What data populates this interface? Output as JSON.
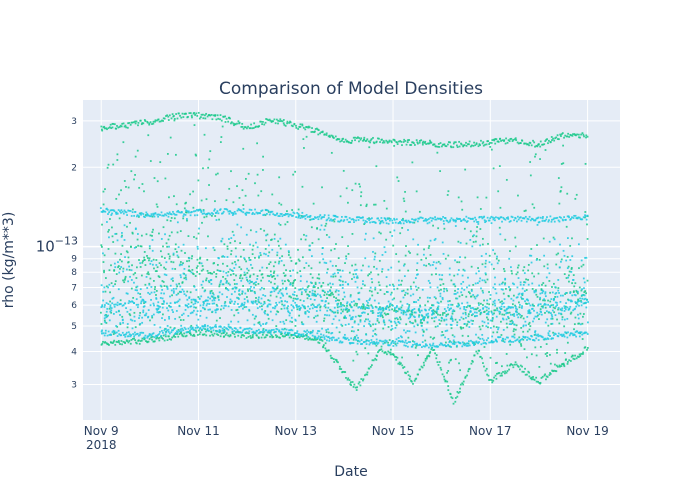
{
  "chart_data": {
    "type": "scatter",
    "title": "Comparison of Model Densities",
    "xlabel": "Date",
    "ylabel": "rho (kg/m**3)",
    "x_ticks": [
      {
        "date": "2018-11-09",
        "label": "Nov 9",
        "sublabel": "2018"
      },
      {
        "date": "2018-11-11",
        "label": "Nov 11",
        "sublabel": ""
      },
      {
        "date": "2018-11-13",
        "label": "Nov 13",
        "sublabel": ""
      },
      {
        "date": "2018-11-15",
        "label": "Nov 15",
        "sublabel": ""
      },
      {
        "date": "2018-11-17",
        "label": "Nov 17",
        "sublabel": ""
      },
      {
        "date": "2018-11-19",
        "label": "Nov 19",
        "sublabel": ""
      }
    ],
    "y_scale": "log",
    "y_major_ticks": [
      {
        "value": 1e-13,
        "base": "10",
        "exp": "−13"
      }
    ],
    "y_minor_ticks": [
      {
        "value": 3e-14,
        "label": "3"
      },
      {
        "value": 4e-14,
        "label": "4"
      },
      {
        "value": 5e-14,
        "label": "5"
      },
      {
        "value": 6e-14,
        "label": "6"
      },
      {
        "value": 7e-14,
        "label": "7"
      },
      {
        "value": 8e-14,
        "label": "8"
      },
      {
        "value": 9e-14,
        "label": "9"
      },
      {
        "value": 2e-13,
        "label": "2"
      },
      {
        "value": 3e-13,
        "label": "3"
      }
    ],
    "xlim": [
      "2018-11-08T15:00",
      "2018-11-19T16:00"
    ],
    "ylim": [
      2.2e-14,
      3.6e-13
    ],
    "grid": true,
    "series": [
      {
        "color": "#19c98a",
        "upper_envelope": [
          [
            "2018-11-09T00:00",
            2.9e-13
          ],
          [
            "2018-11-09T12:00",
            2.95e-13
          ],
          [
            "2018-11-10T00:00",
            3.05e-13
          ],
          [
            "2018-11-10T12:00",
            3.2e-13
          ],
          [
            "2018-11-11T00:00",
            3.22e-13
          ],
          [
            "2018-11-11T12:00",
            3.15e-13
          ],
          [
            "2018-11-12T00:00",
            2.9e-13
          ],
          [
            "2018-11-12T12:00",
            3.1e-13
          ],
          [
            "2018-11-13T00:00",
            2.95e-13
          ],
          [
            "2018-11-13T12:00",
            2.8e-13
          ],
          [
            "2018-11-14T00:00",
            2.6e-13
          ],
          [
            "2018-11-14T12:00",
            2.6e-13
          ],
          [
            "2018-11-15T00:00",
            2.55e-13
          ],
          [
            "2018-11-15T12:00",
            2.55e-13
          ],
          [
            "2018-11-16T00:00",
            2.5e-13
          ],
          [
            "2018-11-16T12:00",
            2.5e-13
          ],
          [
            "2018-11-17T00:00",
            2.55e-13
          ],
          [
            "2018-11-17T12:00",
            2.6e-13
          ],
          [
            "2018-11-18T00:00",
            2.5e-13
          ],
          [
            "2018-11-18T12:00",
            2.7e-13
          ],
          [
            "2018-11-19T00:00",
            2.7e-13
          ]
        ],
        "lower_envelope": [
          [
            "2018-11-09T00:00",
            4.2e-14
          ],
          [
            "2018-11-10T00:00",
            4.3e-14
          ],
          [
            "2018-11-11T00:00",
            4.6e-14
          ],
          [
            "2018-11-12T00:00",
            4.5e-14
          ],
          [
            "2018-11-13T00:00",
            4.5e-14
          ],
          [
            "2018-11-13T12:00",
            4.3e-14
          ],
          [
            "2018-11-14T06:00",
            2.8e-14
          ],
          [
            "2018-11-14T18:00",
            4e-14
          ],
          [
            "2018-11-15T00:00",
            3.8e-14
          ],
          [
            "2018-11-15T10:00",
            3e-14
          ],
          [
            "2018-11-15T20:00",
            4e-14
          ],
          [
            "2018-11-16T06:00",
            2.5e-14
          ],
          [
            "2018-11-16T18:00",
            4e-14
          ],
          [
            "2018-11-17T00:00",
            3e-14
          ],
          [
            "2018-11-17T12:00",
            3.5e-14
          ],
          [
            "2018-11-18T00:00",
            3e-14
          ],
          [
            "2018-11-18T12:00",
            3.5e-14
          ],
          [
            "2018-11-19T00:00",
            4e-14
          ]
        ],
        "median": [
          [
            "2018-11-09T00:00",
            8e-14
          ],
          [
            "2018-11-10T00:00",
            9e-14
          ],
          [
            "2018-11-11T00:00",
            8.5e-14
          ],
          [
            "2018-11-12T00:00",
            8e-14
          ],
          [
            "2018-11-13T00:00",
            7.5e-14
          ],
          [
            "2018-11-14T00:00",
            6.2e-14
          ],
          [
            "2018-11-15T00:00",
            5.8e-14
          ],
          [
            "2018-11-16T00:00",
            5.6e-14
          ],
          [
            "2018-11-17T00:00",
            5.8e-14
          ],
          [
            "2018-11-18T00:00",
            6.2e-14
          ],
          [
            "2018-11-19T00:00",
            7e-14
          ]
        ]
      },
      {
        "color": "#1ecbe1",
        "upper_envelope": [
          [
            "2018-11-09T00:00",
            1.4e-13
          ],
          [
            "2018-11-10T00:00",
            1.35e-13
          ],
          [
            "2018-11-11T00:00",
            1.38e-13
          ],
          [
            "2018-11-12T00:00",
            1.4e-13
          ],
          [
            "2018-11-13T00:00",
            1.35e-13
          ],
          [
            "2018-11-14T00:00",
            1.3e-13
          ],
          [
            "2018-11-15T00:00",
            1.28e-13
          ],
          [
            "2018-11-16T00:00",
            1.3e-13
          ],
          [
            "2018-11-17T00:00",
            1.3e-13
          ],
          [
            "2018-11-18T00:00",
            1.3e-13
          ],
          [
            "2018-11-19T00:00",
            1.32e-13
          ]
        ],
        "lower_envelope": [
          [
            "2018-11-09T00:00",
            4.6e-14
          ],
          [
            "2018-11-10T00:00",
            4.5e-14
          ],
          [
            "2018-11-11T00:00",
            4.8e-14
          ],
          [
            "2018-11-12T00:00",
            4.7e-14
          ],
          [
            "2018-11-13T00:00",
            4.6e-14
          ],
          [
            "2018-11-14T00:00",
            4.3e-14
          ],
          [
            "2018-11-15T00:00",
            4.2e-14
          ],
          [
            "2018-11-16T00:00",
            4.1e-14
          ],
          [
            "2018-11-17T00:00",
            4.3e-14
          ],
          [
            "2018-11-18T00:00",
            4.4e-14
          ],
          [
            "2018-11-19T00:00",
            4.6e-14
          ]
        ],
        "median": [
          [
            "2018-11-09T00:00",
            6e-14
          ],
          [
            "2018-11-10T00:00",
            6.2e-14
          ],
          [
            "2018-11-11T00:00",
            6.3e-14
          ],
          [
            "2018-11-12T00:00",
            6.2e-14
          ],
          [
            "2018-11-13T00:00",
            6e-14
          ],
          [
            "2018-11-14T00:00",
            6e-14
          ],
          [
            "2018-11-15T00:00",
            5.8e-14
          ],
          [
            "2018-11-16T00:00",
            5.8e-14
          ],
          [
            "2018-11-17T00:00",
            5.9e-14
          ],
          [
            "2018-11-18T00:00",
            6e-14
          ],
          [
            "2018-11-19T00:00",
            6.2e-14
          ]
        ]
      }
    ]
  }
}
